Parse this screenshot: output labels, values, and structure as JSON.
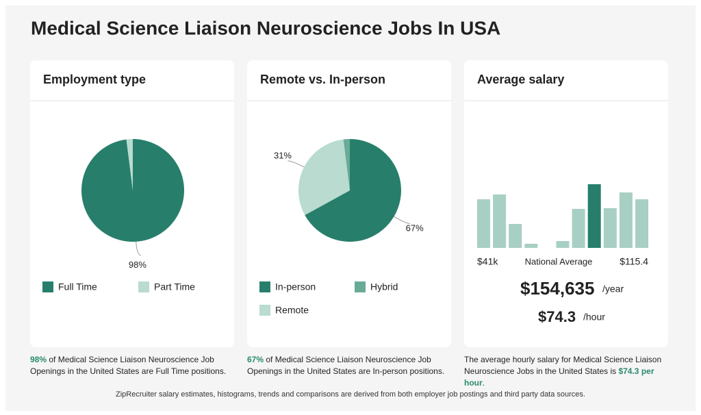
{
  "title": "Medical Science Liaison Neuroscience Jobs In USA",
  "chart_data": [
    {
      "type": "pie",
      "title": "Employment type",
      "categories": [
        "Full Time",
        "Part Time"
      ],
      "values": [
        98,
        2
      ],
      "value_labels": [
        "98%",
        null
      ],
      "colors": [
        "#277f6b",
        "#b9dbd0"
      ]
    },
    {
      "type": "pie",
      "title": "Remote vs. In-person",
      "categories": [
        "In-person",
        "Remote",
        "Hybrid"
      ],
      "values": [
        67,
        31,
        2
      ],
      "value_labels": [
        "67%",
        "31%",
        null
      ],
      "colors": [
        "#277f6b",
        "#b9dbd0",
        "#6aab98"
      ]
    },
    {
      "type": "histogram",
      "title": "Average salary",
      "values": [
        71,
        78,
        35,
        6,
        0,
        10,
        57,
        93,
        58,
        81,
        71
      ],
      "highlight": 7,
      "colors": [
        "#a8cfc3",
        "#277f6b"
      ],
      "axis_labels": [
        "$41k",
        "National Average",
        "$115.4"
      ],
      "yearly": "$154,635",
      "yearly_unit": "/year",
      "hourly": "$74.3",
      "hourly_unit": "/hour"
    }
  ],
  "captions": [
    {
      "strong": "98%",
      "text": " of Medical Science Liaison Neuroscience Job Openings in the United States are Full Time positions."
    },
    {
      "strong": "67%",
      "text": " of Medical Science Liaison Neuroscience Job Openings in the United States are In-person positions."
    },
    {
      "text": "The average hourly salary for Medical Science Liaison Neuroscience Jobs in the United States is ",
      "strong": "$74.3 per hour",
      "end": "."
    }
  ],
  "footer": "ZipRecruiter salary estimates, histograms, trends and comparisons are derived from both employer job postings and third party data sources."
}
